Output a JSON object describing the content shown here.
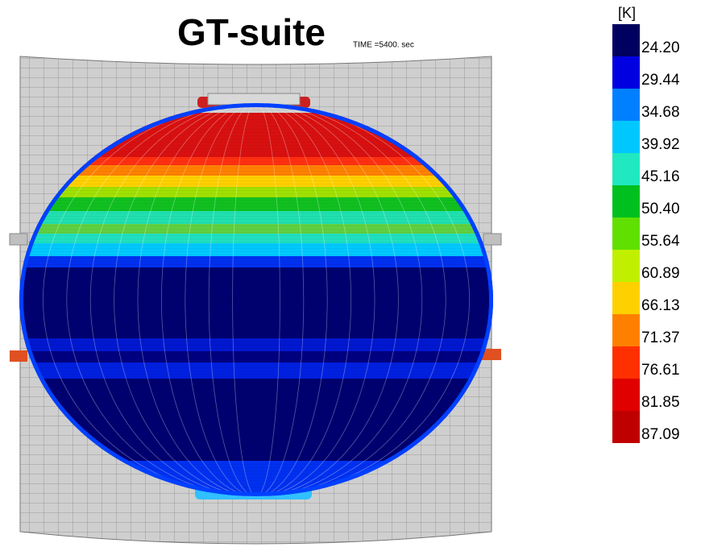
{
  "title": "GT-suite",
  "time_label": "TIME =5400. sec",
  "legend": {
    "unit": "[K]",
    "labels": [
      "24.20",
      "29.44",
      "34.68",
      "39.92",
      "45.16",
      "50.40",
      "55.64",
      "60.89",
      "66.13",
      "71.37",
      "76.61",
      "81.85",
      "87.09"
    ]
  }
}
